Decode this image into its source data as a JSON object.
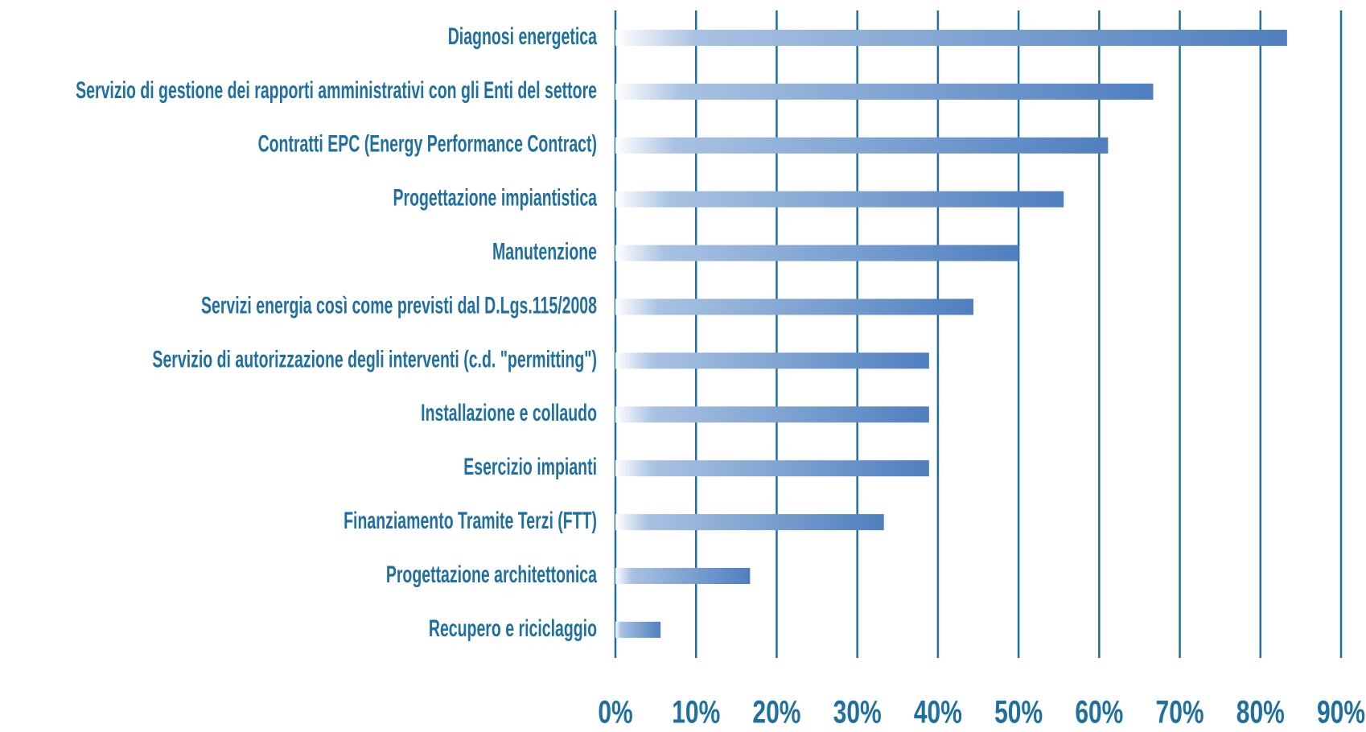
{
  "chart_data": {
    "type": "bar",
    "orientation": "horizontal",
    "categories": [
      "Diagnosi energetica",
      "Servizio di gestione dei rapporti amministrativi con gli Enti del settore",
      "Contratti EPC (Energy Performance Contract)",
      "Progettazione impiantistica",
      "Manutenzione",
      "Servizi energia così come previsti dal D.Lgs.115/2008",
      "Servizio di autorizzazione degli interventi (c.d. \"permitting\")",
      "Installazione e collaudo",
      "Esercizio impianti",
      "Finanziamento Tramite Terzi (FTT)",
      "Progettazione architettonica",
      "Recupero e riciclaggio"
    ],
    "values": [
      83.3,
      66.7,
      61.1,
      55.6,
      50,
      44.4,
      38.9,
      38.9,
      38.9,
      33.3,
      16.7,
      5.6
    ],
    "color": "#4f7fbf",
    "xlim": [
      0,
      90
    ],
    "xticks": [
      {
        "value": 0,
        "label": "0%"
      },
      {
        "value": 10,
        "label": "10%"
      },
      {
        "value": 20,
        "label": "20%"
      },
      {
        "value": 30,
        "label": "30%"
      },
      {
        "value": 40,
        "label": "40%"
      },
      {
        "value": 50,
        "label": "50%"
      },
      {
        "value": 60,
        "label": "60%"
      },
      {
        "value": 70,
        "label": "70%"
      },
      {
        "value": 80,
        "label": "80%"
      },
      {
        "value": 90,
        "label": "90%"
      }
    ],
    "grid": true
  }
}
